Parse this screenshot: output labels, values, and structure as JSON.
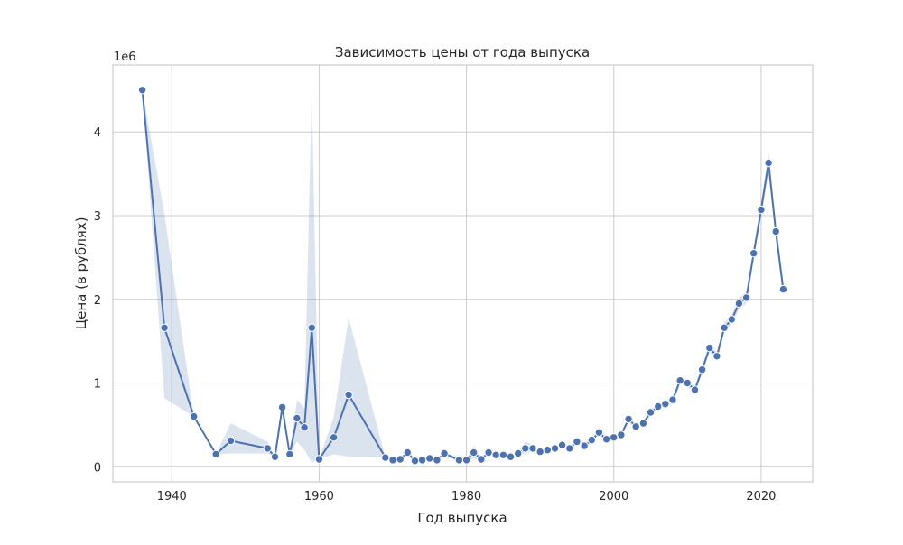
{
  "chart_data": {
    "type": "line",
    "title": "Зависимость цены от года выпуска",
    "xlabel": "Год выпуска",
    "ylabel": "Цена (в рублях)",
    "y_offset_label": "1e6",
    "xlim": [
      1932,
      2027
    ],
    "ylim": [
      -0.18,
      4.8
    ],
    "y_scale_note": "values in units of 1e6 rubles",
    "x_ticks": [
      1940,
      1960,
      1980,
      2000,
      2020
    ],
    "y_ticks": [
      0,
      1,
      2,
      3,
      4
    ],
    "grid": true,
    "series": [
      {
        "color": "#4c72b0",
        "x": [
          1936,
          1939,
          1943,
          1946,
          1948,
          1953,
          1954,
          1955,
          1956,
          1957,
          1958,
          1959,
          1960,
          1962,
          1964,
          1969,
          1970,
          1971,
          1972,
          1973,
          1974,
          1975,
          1976,
          1977,
          1979,
          1980,
          1981,
          1982,
          1983,
          1984,
          1985,
          1986,
          1987,
          1988,
          1989,
          1990,
          1991,
          1992,
          1993,
          1994,
          1995,
          1996,
          1997,
          1998,
          1999,
          2000,
          2001,
          2002,
          2003,
          2004,
          2005,
          2006,
          2007,
          2008,
          2009,
          2010,
          2011,
          2012,
          2013,
          2014,
          2015,
          2016,
          2017,
          2018,
          2019,
          2020,
          2021,
          2022,
          2023
        ],
        "values": [
          4.5,
          1.66,
          0.6,
          0.15,
          0.31,
          0.22,
          0.12,
          0.71,
          0.15,
          0.58,
          0.47,
          1.66,
          0.09,
          0.35,
          0.86,
          0.11,
          0.08,
          0.09,
          0.17,
          0.07,
          0.08,
          0.1,
          0.08,
          0.16,
          0.08,
          0.08,
          0.17,
          0.09,
          0.17,
          0.14,
          0.14,
          0.12,
          0.16,
          0.22,
          0.22,
          0.18,
          0.2,
          0.22,
          0.26,
          0.22,
          0.3,
          0.25,
          0.32,
          0.41,
          0.33,
          0.35,
          0.38,
          0.57,
          0.48,
          0.52,
          0.65,
          0.72,
          0.75,
          0.8,
          1.03,
          1.0,
          0.92,
          1.16,
          1.42,
          1.32,
          1.66,
          1.76,
          1.95,
          2.02,
          2.55,
          3.07,
          3.63,
          2.81,
          2.12
        ],
        "ci_upper": [
          4.5,
          3.02,
          0.6,
          0.15,
          0.52,
          0.3,
          0.12,
          0.71,
          0.15,
          0.8,
          0.7,
          4.52,
          0.09,
          0.6,
          1.78,
          0.11,
          0.1,
          0.12,
          0.2,
          0.09,
          0.1,
          0.12,
          0.1,
          0.18,
          0.1,
          0.1,
          0.25,
          0.11,
          0.2,
          0.16,
          0.16,
          0.14,
          0.18,
          0.3,
          0.26,
          0.21,
          0.23,
          0.25,
          0.29,
          0.25,
          0.33,
          0.28,
          0.35,
          0.44,
          0.36,
          0.38,
          0.41,
          0.6,
          0.51,
          0.55,
          0.68,
          0.75,
          0.79,
          0.84,
          1.07,
          1.04,
          0.96,
          1.2,
          1.47,
          1.37,
          1.72,
          1.82,
          2.02,
          2.09,
          2.62,
          3.16,
          3.76,
          2.91,
          2.2
        ],
        "ci_lower": [
          4.5,
          0.82,
          0.6,
          0.15,
          0.16,
          0.16,
          0.12,
          0.71,
          0.15,
          0.3,
          0.2,
          0.05,
          0.09,
          0.15,
          0.12,
          0.11,
          0.06,
          0.07,
          0.14,
          0.05,
          0.06,
          0.08,
          0.06,
          0.14,
          0.06,
          0.06,
          0.1,
          0.07,
          0.14,
          0.12,
          0.12,
          0.1,
          0.14,
          0.16,
          0.18,
          0.15,
          0.17,
          0.19,
          0.23,
          0.19,
          0.27,
          0.22,
          0.29,
          0.38,
          0.3,
          0.32,
          0.35,
          0.54,
          0.45,
          0.49,
          0.62,
          0.69,
          0.71,
          0.76,
          0.99,
          0.96,
          0.88,
          1.12,
          1.37,
          1.27,
          1.6,
          1.7,
          1.88,
          1.95,
          2.48,
          2.98,
          3.5,
          2.71,
          2.04
        ]
      }
    ]
  }
}
